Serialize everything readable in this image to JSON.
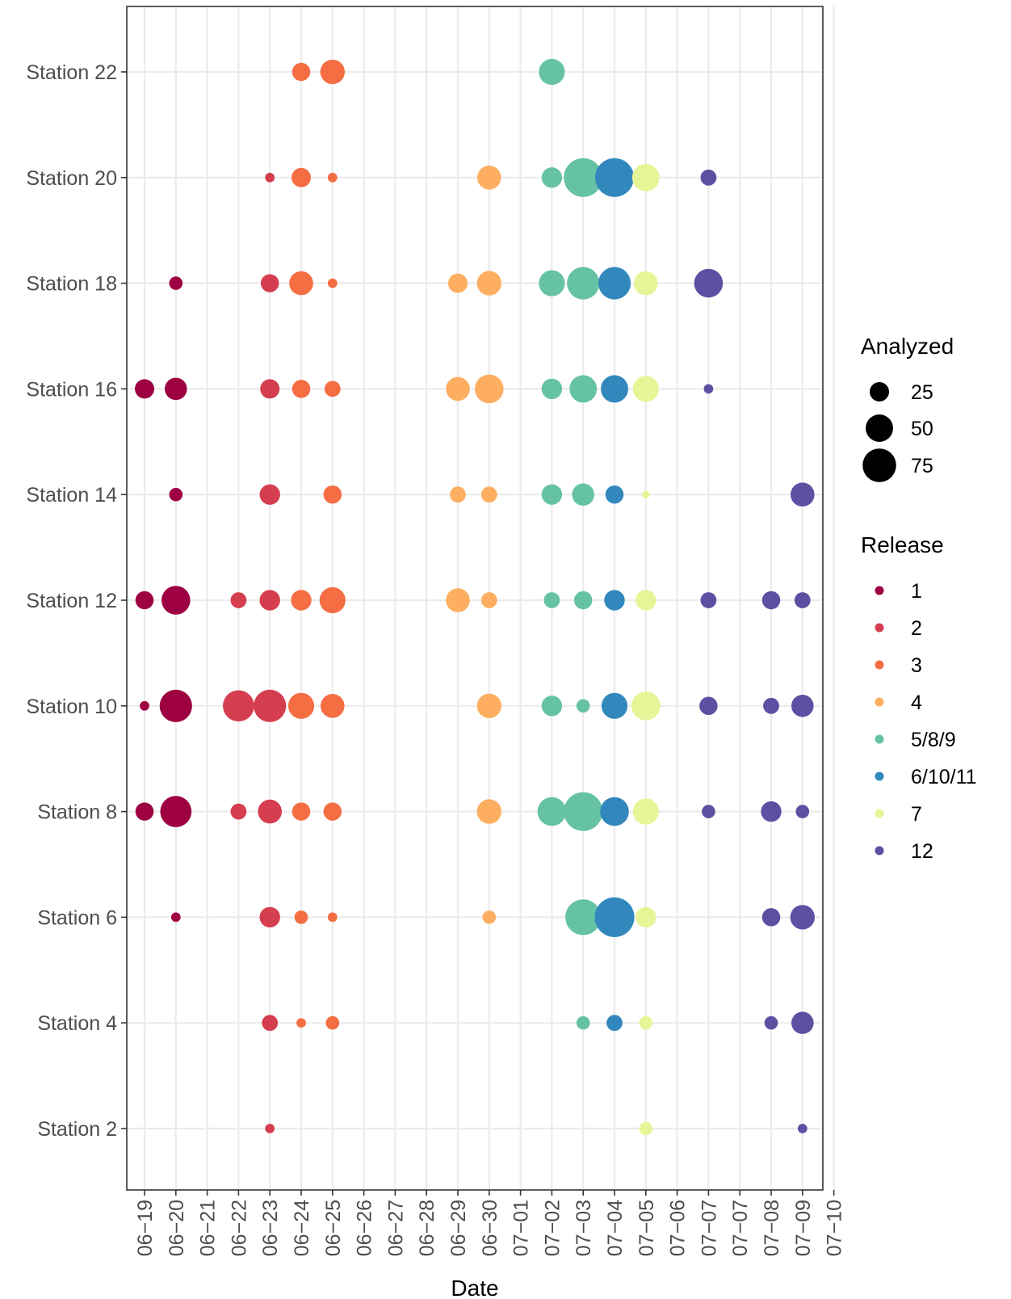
{
  "chart_data": {
    "type": "scatter",
    "title": "",
    "xlabel": "Date",
    "ylabel": "",
    "x_categories": [
      "06-19",
      "06-20",
      "06-21",
      "06-22",
      "06-23",
      "06-24",
      "06-25",
      "06-26",
      "06-27",
      "06-28",
      "06-29",
      "06-30",
      "07-01",
      "07-02",
      "07-03",
      "07-04",
      "07-05",
      "07-06",
      "07-07",
      "07-07",
      "07-08",
      "07-09",
      "07-10"
    ],
    "y_categories": [
      "Station 2",
      "Station 4",
      "Station 6",
      "Station 8",
      "Station 10",
      "Station 12",
      "Station 14",
      "Station 16",
      "Station 18",
      "Station 20",
      "Station 22"
    ],
    "grid": true,
    "legend_placement": "right",
    "size_legend": {
      "title": "Analyzed",
      "values": [
        25,
        50,
        75
      ]
    },
    "color_legend": {
      "title": "Release",
      "entries": [
        {
          "label": "1",
          "color": "#9E0142"
        },
        {
          "label": "2",
          "color": "#D53E4F"
        },
        {
          "label": "3",
          "color": "#F46D43"
        },
        {
          "label": "4",
          "color": "#FDAE61"
        },
        {
          "label": "5/8/9",
          "color": "#66C2A5"
        },
        {
          "label": "6/10/11",
          "color": "#3288BD"
        },
        {
          "label": "7",
          "color": "#E6F598"
        },
        {
          "label": "12",
          "color": "#5E4FA2"
        }
      ]
    },
    "points": [
      {
        "station": "Station 22",
        "x_index": 5,
        "release": "3",
        "analyzed": 22
      },
      {
        "station": "Station 22",
        "x_index": 6,
        "release": "3",
        "analyzed": 40
      },
      {
        "station": "Station 22",
        "x_index": 13,
        "release": "5/8/9",
        "analyzed": 45
      },
      {
        "station": "Station 20",
        "x_index": 4,
        "release": "2",
        "analyzed": 6
      },
      {
        "station": "Station 20",
        "x_index": 5,
        "release": "3",
        "analyzed": 25
      },
      {
        "station": "Station 20",
        "x_index": 6,
        "release": "3",
        "analyzed": 6
      },
      {
        "station": "Station 20",
        "x_index": 11,
        "release": "4",
        "analyzed": 38
      },
      {
        "station": "Station 20",
        "x_index": 13,
        "release": "5/8/9",
        "analyzed": 28
      },
      {
        "station": "Station 20",
        "x_index": 14,
        "release": "5/8/9",
        "analyzed": 100
      },
      {
        "station": "Station 20",
        "x_index": 15,
        "release": "6/10/11",
        "analyzed": 100
      },
      {
        "station": "Station 20",
        "x_index": 16,
        "release": "7",
        "analyzed": 50
      },
      {
        "station": "Station 20",
        "x_index": 18,
        "release": "12",
        "analyzed": 17
      },
      {
        "station": "Station 18",
        "x_index": 1,
        "release": "1",
        "analyzed": 12
      },
      {
        "station": "Station 18",
        "x_index": 4,
        "release": "2",
        "analyzed": 22
      },
      {
        "station": "Station 18",
        "x_index": 5,
        "release": "3",
        "analyzed": 38
      },
      {
        "station": "Station 18",
        "x_index": 6,
        "release": "3",
        "analyzed": 6
      },
      {
        "station": "Station 18",
        "x_index": 10,
        "release": "4",
        "analyzed": 25
      },
      {
        "station": "Station 18",
        "x_index": 11,
        "release": "4",
        "analyzed": 40
      },
      {
        "station": "Station 18",
        "x_index": 13,
        "release": "5/8/9",
        "analyzed": 45
      },
      {
        "station": "Station 18",
        "x_index": 14,
        "release": "5/8/9",
        "analyzed": 70
      },
      {
        "station": "Station 18",
        "x_index": 15,
        "release": "6/10/11",
        "analyzed": 70
      },
      {
        "station": "Station 18",
        "x_index": 16,
        "release": "7",
        "analyzed": 38
      },
      {
        "station": "Station 18",
        "x_index": 18,
        "release": "12",
        "analyzed": 55
      },
      {
        "station": "Station 16",
        "x_index": 0,
        "release": "1",
        "analyzed": 25
      },
      {
        "station": "Station 16",
        "x_index": 1,
        "release": "1",
        "analyzed": 33
      },
      {
        "station": "Station 16",
        "x_index": 4,
        "release": "2",
        "analyzed": 25
      },
      {
        "station": "Station 16",
        "x_index": 5,
        "release": "3",
        "analyzed": 22
      },
      {
        "station": "Station 16",
        "x_index": 6,
        "release": "3",
        "analyzed": 17
      },
      {
        "station": "Station 16",
        "x_index": 10,
        "release": "4",
        "analyzed": 38
      },
      {
        "station": "Station 16",
        "x_index": 11,
        "release": "4",
        "analyzed": 55
      },
      {
        "station": "Station 16",
        "x_index": 13,
        "release": "5/8/9",
        "analyzed": 28
      },
      {
        "station": "Station 16",
        "x_index": 14,
        "release": "5/8/9",
        "analyzed": 50
      },
      {
        "station": "Station 16",
        "x_index": 15,
        "release": "6/10/11",
        "analyzed": 50
      },
      {
        "station": "Station 16",
        "x_index": 16,
        "release": "7",
        "analyzed": 45
      },
      {
        "station": "Station 16",
        "x_index": 18,
        "release": "12",
        "analyzed": 6
      },
      {
        "station": "Station 14",
        "x_index": 1,
        "release": "1",
        "analyzed": 12
      },
      {
        "station": "Station 14",
        "x_index": 4,
        "release": "2",
        "analyzed": 28
      },
      {
        "station": "Station 14",
        "x_index": 6,
        "release": "3",
        "analyzed": 22
      },
      {
        "station": "Station 14",
        "x_index": 10,
        "release": "4",
        "analyzed": 17
      },
      {
        "station": "Station 14",
        "x_index": 11,
        "release": "4",
        "analyzed": 17
      },
      {
        "station": "Station 14",
        "x_index": 13,
        "release": "5/8/9",
        "analyzed": 28
      },
      {
        "station": "Station 14",
        "x_index": 14,
        "release": "5/8/9",
        "analyzed": 33
      },
      {
        "station": "Station 14",
        "x_index": 15,
        "release": "6/10/11",
        "analyzed": 22
      },
      {
        "station": "Station 14",
        "x_index": 16,
        "release": "7",
        "analyzed": 4
      },
      {
        "station": "Station 14",
        "x_index": 21,
        "release": "12",
        "analyzed": 38
      },
      {
        "station": "Station 12",
        "x_index": 0,
        "release": "1",
        "analyzed": 22
      },
      {
        "station": "Station 12",
        "x_index": 1,
        "release": "1",
        "analyzed": 55
      },
      {
        "station": "Station 12",
        "x_index": 3,
        "release": "2",
        "analyzed": 17
      },
      {
        "station": "Station 12",
        "x_index": 4,
        "release": "2",
        "analyzed": 28
      },
      {
        "station": "Station 12",
        "x_index": 5,
        "release": "3",
        "analyzed": 28
      },
      {
        "station": "Station 12",
        "x_index": 6,
        "release": "3",
        "analyzed": 45
      },
      {
        "station": "Station 12",
        "x_index": 10,
        "release": "4",
        "analyzed": 38
      },
      {
        "station": "Station 12",
        "x_index": 11,
        "release": "4",
        "analyzed": 17
      },
      {
        "station": "Station 12",
        "x_index": 13,
        "release": "5/8/9",
        "analyzed": 17
      },
      {
        "station": "Station 12",
        "x_index": 14,
        "release": "5/8/9",
        "analyzed": 22
      },
      {
        "station": "Station 12",
        "x_index": 15,
        "release": "6/10/11",
        "analyzed": 28
      },
      {
        "station": "Station 12",
        "x_index": 16,
        "release": "7",
        "analyzed": 28
      },
      {
        "station": "Station 12",
        "x_index": 18,
        "release": "12",
        "analyzed": 17
      },
      {
        "station": "Station 12",
        "x_index": 20,
        "release": "12",
        "analyzed": 22
      },
      {
        "station": "Station 12",
        "x_index": 21,
        "release": "12",
        "analyzed": 17
      },
      {
        "station": "Station 10",
        "x_index": 0,
        "release": "1",
        "analyzed": 6
      },
      {
        "station": "Station 10",
        "x_index": 1,
        "release": "1",
        "analyzed": 70
      },
      {
        "station": "Station 10",
        "x_index": 3,
        "release": "2",
        "analyzed": 65
      },
      {
        "station": "Station 10",
        "x_index": 4,
        "release": "2",
        "analyzed": 70
      },
      {
        "station": "Station 10",
        "x_index": 5,
        "release": "3",
        "analyzed": 45
      },
      {
        "station": "Station 10",
        "x_index": 6,
        "release": "3",
        "analyzed": 38
      },
      {
        "station": "Station 10",
        "x_index": 11,
        "release": "4",
        "analyzed": 40
      },
      {
        "station": "Station 10",
        "x_index": 13,
        "release": "5/8/9",
        "analyzed": 28
      },
      {
        "station": "Station 10",
        "x_index": 14,
        "release": "5/8/9",
        "analyzed": 12
      },
      {
        "station": "Station 10",
        "x_index": 15,
        "release": "6/10/11",
        "analyzed": 45
      },
      {
        "station": "Station 10",
        "x_index": 16,
        "release": "7",
        "analyzed": 55
      },
      {
        "station": "Station 10",
        "x_index": 18,
        "release": "12",
        "analyzed": 22
      },
      {
        "station": "Station 10",
        "x_index": 20,
        "release": "12",
        "analyzed": 17
      },
      {
        "station": "Station 10",
        "x_index": 21,
        "release": "12",
        "analyzed": 33
      },
      {
        "station": "Station 8",
        "x_index": 0,
        "release": "1",
        "analyzed": 22
      },
      {
        "station": "Station 8",
        "x_index": 1,
        "release": "1",
        "analyzed": 65
      },
      {
        "station": "Station 8",
        "x_index": 3,
        "release": "2",
        "analyzed": 17
      },
      {
        "station": "Station 8",
        "x_index": 4,
        "release": "2",
        "analyzed": 38
      },
      {
        "station": "Station 8",
        "x_index": 5,
        "release": "3",
        "analyzed": 22
      },
      {
        "station": "Station 8",
        "x_index": 6,
        "release": "3",
        "analyzed": 22
      },
      {
        "station": "Station 8",
        "x_index": 11,
        "release": "4",
        "analyzed": 40
      },
      {
        "station": "Station 8",
        "x_index": 13,
        "release": "5/8/9",
        "analyzed": 55
      },
      {
        "station": "Station 8",
        "x_index": 14,
        "release": "5/8/9",
        "analyzed": 100
      },
      {
        "station": "Station 8",
        "x_index": 15,
        "release": "6/10/11",
        "analyzed": 55
      },
      {
        "station": "Station 8",
        "x_index": 16,
        "release": "7",
        "analyzed": 45
      },
      {
        "station": "Station 8",
        "x_index": 18,
        "release": "12",
        "analyzed": 12
      },
      {
        "station": "Station 8",
        "x_index": 20,
        "release": "12",
        "analyzed": 28
      },
      {
        "station": "Station 8",
        "x_index": 21,
        "release": "12",
        "analyzed": 12
      },
      {
        "station": "Station 6",
        "x_index": 1,
        "release": "1",
        "analyzed": 6
      },
      {
        "station": "Station 6",
        "x_index": 4,
        "release": "2",
        "analyzed": 28
      },
      {
        "station": "Station 6",
        "x_index": 5,
        "release": "3",
        "analyzed": 12
      },
      {
        "station": "Station 6",
        "x_index": 6,
        "release": "3",
        "analyzed": 6
      },
      {
        "station": "Station 6",
        "x_index": 11,
        "release": "4",
        "analyzed": 12
      },
      {
        "station": "Station 6",
        "x_index": 14,
        "release": "5/8/9",
        "analyzed": 85
      },
      {
        "station": "Station 6",
        "x_index": 15,
        "release": "6/10/11",
        "analyzed": 105
      },
      {
        "station": "Station 6",
        "x_index": 16,
        "release": "7",
        "analyzed": 28
      },
      {
        "station": "Station 6",
        "x_index": 20,
        "release": "12",
        "analyzed": 22
      },
      {
        "station": "Station 6",
        "x_index": 21,
        "release": "12",
        "analyzed": 40
      },
      {
        "station": "Station 4",
        "x_index": 4,
        "release": "2",
        "analyzed": 17
      },
      {
        "station": "Station 4",
        "x_index": 5,
        "release": "3",
        "analyzed": 6
      },
      {
        "station": "Station 4",
        "x_index": 6,
        "release": "3",
        "analyzed": 12
      },
      {
        "station": "Station 4",
        "x_index": 14,
        "release": "5/8/9",
        "analyzed": 12
      },
      {
        "station": "Station 4",
        "x_index": 15,
        "release": "6/10/11",
        "analyzed": 17
      },
      {
        "station": "Station 4",
        "x_index": 16,
        "release": "7",
        "analyzed": 12
      },
      {
        "station": "Station 4",
        "x_index": 20,
        "release": "12",
        "analyzed": 12
      },
      {
        "station": "Station 4",
        "x_index": 21,
        "release": "12",
        "analyzed": 33
      },
      {
        "station": "Station 2",
        "x_index": 4,
        "release": "2",
        "analyzed": 6
      },
      {
        "station": "Station 2",
        "x_index": 16,
        "release": "7",
        "analyzed": 12
      },
      {
        "station": "Station 2",
        "x_index": 21,
        "release": "12",
        "analyzed": 6
      }
    ]
  }
}
